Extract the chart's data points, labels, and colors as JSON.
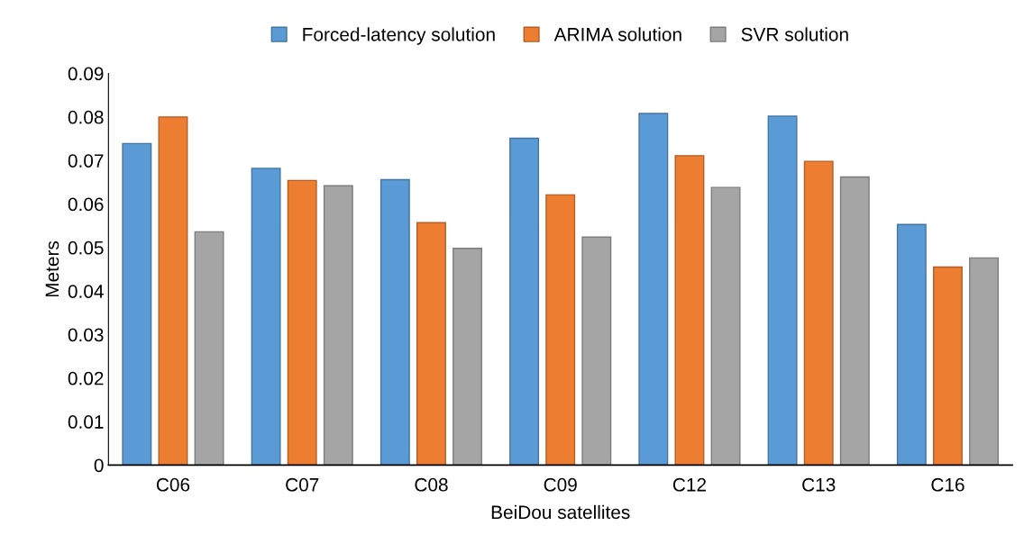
{
  "chart_data": {
    "type": "bar",
    "xlabel": "BeiDou satellites",
    "ylabel": "Meters",
    "categories": [
      "C06",
      "C07",
      "C08",
      "C09",
      "C12",
      "C13",
      "C16"
    ],
    "series": [
      {
        "name": "Forced-latency solution",
        "color": "#5b9bd5",
        "values": [
          0.0739,
          0.0682,
          0.0656,
          0.0751,
          0.0808,
          0.0802,
          0.0553
        ]
      },
      {
        "name": "ARIMA solution",
        "color": "#ed7d31",
        "values": [
          0.08,
          0.0654,
          0.0557,
          0.0621,
          0.0711,
          0.0698,
          0.0455
        ]
      },
      {
        "name": "SVR solution",
        "color": "#a5a5a5",
        "values": [
          0.0536,
          0.0642,
          0.0498,
          0.0524,
          0.0638,
          0.0662,
          0.0476
        ]
      }
    ],
    "ylim": [
      0,
      0.09
    ],
    "yticks": [
      0,
      0.01,
      0.02,
      0.03,
      0.04,
      0.05,
      0.06,
      0.07,
      0.08,
      0.09
    ],
    "grid": false,
    "legend": "top"
  }
}
